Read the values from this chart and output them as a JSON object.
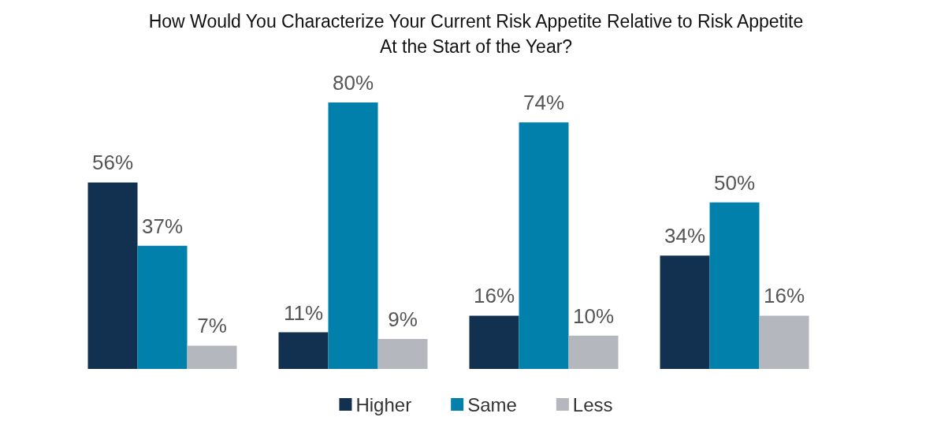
{
  "chart_data": {
    "type": "bar",
    "title": "How Would You Characterize Your Current Risk Appetite Relative to Risk Appetite\nAt the Start of the Year?",
    "categories": [
      null,
      null,
      null,
      null
    ],
    "series": [
      {
        "name": "Higher",
        "color": "#12304f",
        "values": [
          56,
          11,
          16,
          34
        ],
        "value_labels": [
          "56%",
          "11%",
          "16%",
          "34%"
        ]
      },
      {
        "name": "Same",
        "color": "#0080ab",
        "values": [
          37,
          80,
          74,
          50
        ],
        "value_labels": [
          "37%",
          "80%",
          "74%",
          "50%"
        ]
      },
      {
        "name": "Less",
        "color": "#b4b7be",
        "values": [
          7,
          9,
          10,
          16
        ],
        "value_labels": [
          "7%",
          "9%",
          "10%",
          "16%"
        ]
      }
    ],
    "legend": "bottom"
  }
}
